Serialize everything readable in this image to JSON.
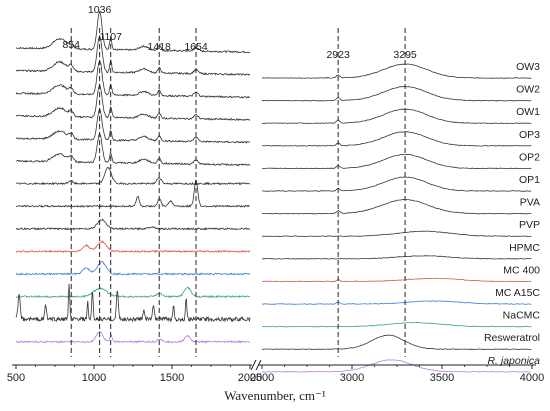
{
  "chart_data": {
    "type": "line",
    "title": "",
    "xlabel": "Wavenumber, cm⁻¹",
    "ylabel": "",
    "x_ranges": [
      [
        500,
        2000
      ],
      [
        2500,
        4000
      ]
    ],
    "x_break": true,
    "x_ticks_left": [
      "500",
      "1000",
      "1500",
      "2000"
    ],
    "x_ticks_right": [
      "2500",
      "3000",
      "3500",
      "4000"
    ],
    "grid": false,
    "legend": "labels at right end of each trace",
    "peak_lines": [
      {
        "label": "854",
        "x": 854
      },
      {
        "label": "1036",
        "x": 1036
      },
      {
        "label": "1107",
        "x": 1107
      },
      {
        "label": "1418",
        "x": 1418
      },
      {
        "label": "1654",
        "x": 1654
      },
      {
        "label": "2923",
        "x": 2923
      },
      {
        "label": "3295",
        "x": 3295
      }
    ],
    "series": [
      {
        "name": "OW3",
        "italic": false,
        "color": "#333333"
      },
      {
        "name": "OW2",
        "italic": false,
        "color": "#333333"
      },
      {
        "name": "OW1",
        "italic": false,
        "color": "#333333"
      },
      {
        "name": "OP3",
        "italic": false,
        "color": "#333333"
      },
      {
        "name": "OP2",
        "italic": false,
        "color": "#333333"
      },
      {
        "name": "OP1",
        "italic": false,
        "color": "#333333"
      },
      {
        "name": "PVA",
        "italic": false,
        "color": "#333333"
      },
      {
        "name": "PVP",
        "italic": false,
        "color": "#333333"
      },
      {
        "name": "HPMC",
        "italic": false,
        "color": "#333333"
      },
      {
        "name": "MC 400",
        "italic": false,
        "color": "#d9534f"
      },
      {
        "name": "MC A15C",
        "italic": false,
        "color": "#3b7dd8"
      },
      {
        "name": "NaCMC",
        "italic": false,
        "color": "#3aa76d"
      },
      {
        "name": "Resweratrol",
        "italic": false,
        "color": "#333333"
      },
      {
        "name": "R. japonica",
        "italic": true,
        "color": "#b57edc"
      }
    ]
  }
}
